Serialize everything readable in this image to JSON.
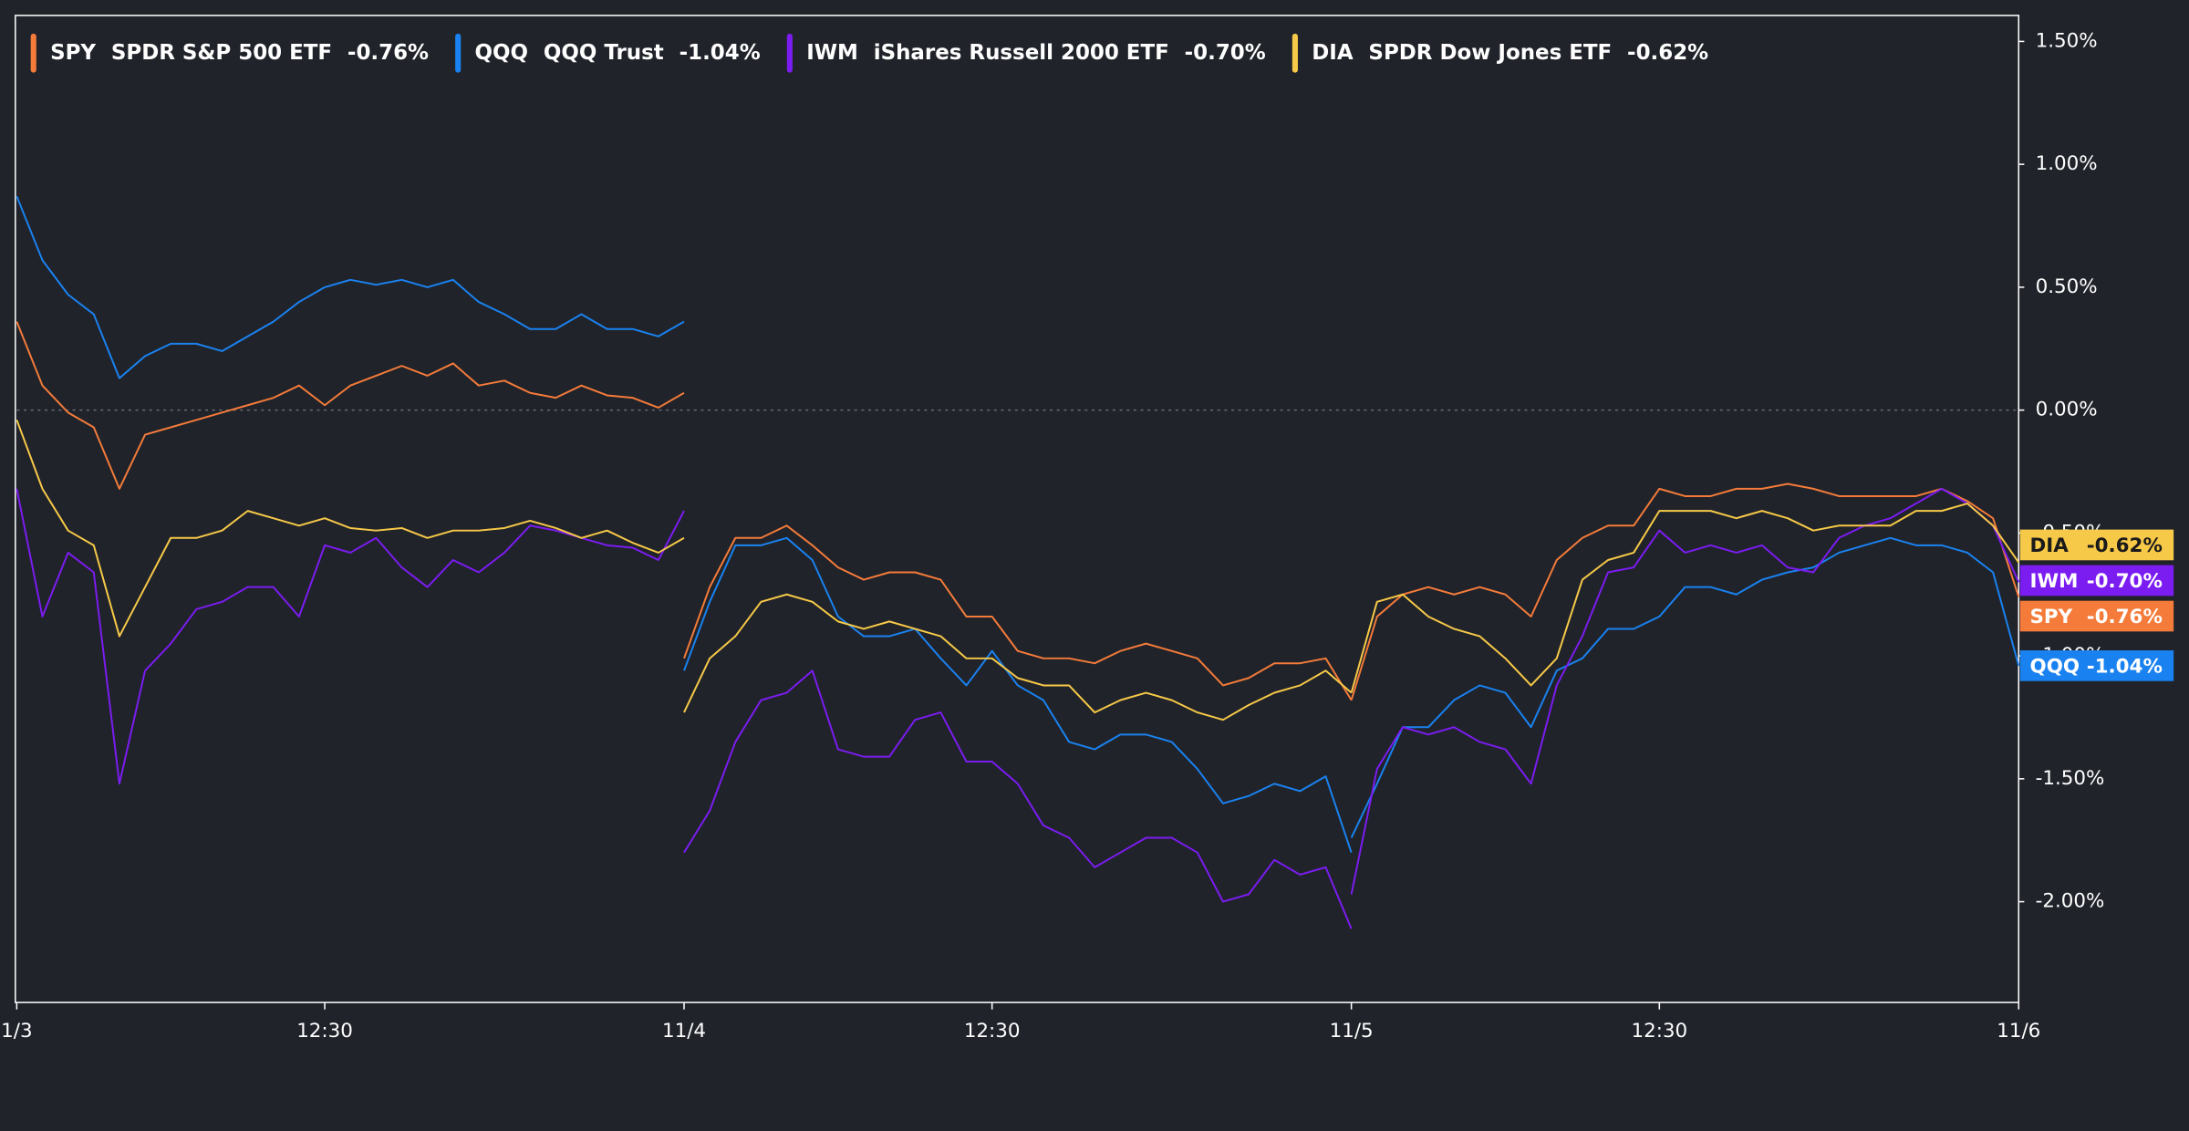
{
  "chart_data": {
    "type": "line",
    "x": [
      0,
      0.25,
      0.5,
      0.75,
      1,
      1.25,
      1.5,
      1.75,
      2,
      2.25,
      2.5,
      2.75,
      3,
      3.25,
      3.5,
      3.75,
      4,
      4.25,
      4.5,
      4.75,
      5,
      5.25,
      5.5,
      5.75,
      6,
      6.25,
      6.5,
      6.5,
      6.5,
      6.75,
      7,
      7.25,
      7.5,
      7.75,
      8,
      8.25,
      8.5,
      8.75,
      9,
      9.25,
      9.5,
      9.75,
      10,
      10.25,
      10.5,
      10.75,
      11,
      11.25,
      11.5,
      11.75,
      12,
      12.25,
      12.5,
      12.75,
      13,
      13,
      13,
      13.25,
      13.5,
      13.75,
      14,
      14.25,
      14.5,
      14.75,
      15,
      15.25,
      15.5,
      15.75,
      16,
      16.25,
      16.5,
      16.75,
      17,
      17.25,
      17.5,
      17.75,
      18,
      18.25,
      18.5,
      18.75,
      19,
      19.25,
      19.5
    ],
    "xlim": [
      0,
      19.5
    ],
    "xticks": [
      {
        "value": 0,
        "label": "1/3"
      },
      {
        "value": 3,
        "label": "12:30"
      },
      {
        "value": 6.5,
        "label": "11/4"
      },
      {
        "value": 9.5,
        "label": "12:30"
      },
      {
        "value": 13,
        "label": "11/5"
      },
      {
        "value": 16,
        "label": "12:30"
      },
      {
        "value": 19.5,
        "label": "11/6"
      }
    ],
    "ylim": [
      -2.41,
      1.6
    ],
    "yticks": [
      {
        "value": -2,
        "label": "-2.00%"
      },
      {
        "value": -1.5,
        "label": "-1.50%"
      },
      {
        "value": -1,
        "label": "-1.00%"
      },
      {
        "value": -0.5,
        "label": "-0.50%"
      },
      {
        "value": 0,
        "label": "0.00%"
      },
      {
        "value": 0.5,
        "label": "0.50%"
      },
      {
        "value": 1,
        "label": "1.00%"
      },
      {
        "value": 1.5,
        "label": "1.50%"
      }
    ],
    "zero_line": true,
    "series": [
      {
        "name": "SPY",
        "description": "SPDR S&P 500 ETF",
        "change": -0.76,
        "change_label": "-0.76%",
        "color": "#f47b3a",
        "values": [
          0.36,
          0.1,
          -0.01,
          -0.07,
          -0.32,
          -0.1,
          -0.07,
          -0.04,
          -0.01,
          0.02,
          0.05,
          0.1,
          0.02,
          0.1,
          0.14,
          0.18,
          0.14,
          0.19,
          0.1,
          0.12,
          0.07,
          0.05,
          0.1,
          0.06,
          0.05,
          0.01,
          0.07,
          null,
          -1.01,
          -0.72,
          -0.52,
          -0.52,
          -0.47,
          -0.55,
          -0.64,
          -0.69,
          -0.66,
          -0.66,
          -0.69,
          -0.84,
          -0.84,
          -0.98,
          -1.01,
          -1.01,
          -1.03,
          -0.98,
          -0.95,
          -0.98,
          -1.01,
          -1.12,
          -1.09,
          -1.03,
          -1.03,
          -1.01,
          -1.18,
          null,
          -1.18,
          -0.84,
          -0.75,
          -0.72,
          -0.75,
          -0.72,
          -0.75,
          -0.84,
          -0.61,
          -0.52,
          -0.47,
          -0.47,
          -0.32,
          -0.35,
          -0.35,
          -0.32,
          -0.32,
          -0.3,
          -0.32,
          -0.35,
          -0.35,
          -0.35,
          -0.35,
          -0.32,
          -0.37,
          -0.44,
          -0.76
        ]
      },
      {
        "name": "QQQ",
        "description": "QQQ Trust",
        "change": -1.04,
        "change_label": "-1.04%",
        "color": "#1a82f0",
        "values": [
          0.87,
          0.61,
          0.47,
          0.39,
          0.13,
          0.22,
          0.27,
          0.27,
          0.24,
          0.3,
          0.36,
          0.44,
          0.5,
          0.53,
          0.51,
          0.53,
          0.5,
          0.53,
          0.44,
          0.39,
          0.33,
          0.33,
          0.39,
          0.33,
          0.33,
          0.3,
          0.36,
          null,
          -1.06,
          -0.78,
          -0.55,
          -0.55,
          -0.52,
          -0.61,
          -0.84,
          -0.92,
          -0.92,
          -0.89,
          -1.01,
          -1.12,
          -0.98,
          -1.12,
          -1.18,
          -1.35,
          -1.38,
          -1.32,
          -1.32,
          -1.35,
          -1.46,
          -1.6,
          -1.57,
          -1.52,
          -1.55,
          -1.49,
          -1.8,
          null,
          -1.74,
          -1.52,
          -1.29,
          -1.29,
          -1.18,
          -1.12,
          -1.15,
          -1.29,
          -1.06,
          -1.01,
          -0.89,
          -0.89,
          -0.84,
          -0.72,
          -0.72,
          -0.75,
          -0.69,
          -0.66,
          -0.64,
          -0.58,
          -0.55,
          -0.52,
          -0.55,
          -0.55,
          -0.58,
          -0.66,
          -1.04
        ]
      },
      {
        "name": "IWM",
        "description": "iShares Russell 2000 ETF",
        "change": -0.7,
        "change_label": "-0.70%",
        "color": "#7b1cf0",
        "values": [
          -0.32,
          -0.84,
          -0.58,
          -0.66,
          -1.52,
          -1.06,
          -0.95,
          -0.81,
          -0.78,
          -0.72,
          -0.72,
          -0.84,
          -0.55,
          -0.58,
          -0.52,
          -0.64,
          -0.72,
          -0.61,
          -0.66,
          -0.58,
          -0.47,
          -0.49,
          -0.52,
          -0.55,
          -0.56,
          -0.61,
          -0.41,
          null,
          -1.8,
          -1.63,
          -1.35,
          -1.18,
          -1.15,
          -1.06,
          -1.38,
          -1.41,
          -1.41,
          -1.26,
          -1.23,
          -1.43,
          -1.43,
          -1.52,
          -1.69,
          -1.74,
          -1.86,
          -1.8,
          -1.74,
          -1.74,
          -1.8,
          -2.0,
          -1.97,
          -1.83,
          -1.89,
          -1.86,
          -2.11,
          null,
          -1.97,
          -1.46,
          -1.29,
          -1.32,
          -1.29,
          -1.35,
          -1.38,
          -1.52,
          -1.12,
          -0.92,
          -0.66,
          -0.64,
          -0.49,
          -0.58,
          -0.55,
          -0.58,
          -0.55,
          -0.64,
          -0.66,
          -0.52,
          -0.47,
          -0.44,
          -0.38,
          -0.32,
          -0.38,
          -0.47,
          -0.7
        ]
      },
      {
        "name": "DIA",
        "description": "SPDR Dow Jones ETF",
        "change": -0.62,
        "change_label": "-0.62%",
        "color": "#f7c948",
        "values": [
          -0.04,
          -0.32,
          -0.49,
          -0.55,
          -0.92,
          -0.72,
          -0.52,
          -0.52,
          -0.49,
          -0.41,
          -0.44,
          -0.47,
          -0.44,
          -0.48,
          -0.49,
          -0.48,
          -0.52,
          -0.49,
          -0.49,
          -0.48,
          -0.45,
          -0.48,
          -0.52,
          -0.49,
          -0.54,
          -0.58,
          -0.52,
          null,
          -1.23,
          -1.01,
          -0.92,
          -0.78,
          -0.75,
          -0.78,
          -0.86,
          -0.89,
          -0.86,
          -0.89,
          -0.92,
          -1.01,
          -1.01,
          -1.09,
          -1.12,
          -1.12,
          -1.23,
          -1.18,
          -1.15,
          -1.18,
          -1.23,
          -1.26,
          -1.2,
          -1.15,
          -1.12,
          -1.06,
          -1.15,
          null,
          -1.15,
          -0.78,
          -0.75,
          -0.84,
          -0.89,
          -0.92,
          -1.01,
          -1.12,
          -1.01,
          -0.69,
          -0.61,
          -0.58,
          -0.41,
          -0.41,
          -0.41,
          -0.44,
          -0.41,
          -0.44,
          -0.49,
          -0.47,
          -0.47,
          -0.47,
          -0.41,
          -0.41,
          -0.38,
          -0.47,
          -0.62
        ]
      }
    ]
  }
}
